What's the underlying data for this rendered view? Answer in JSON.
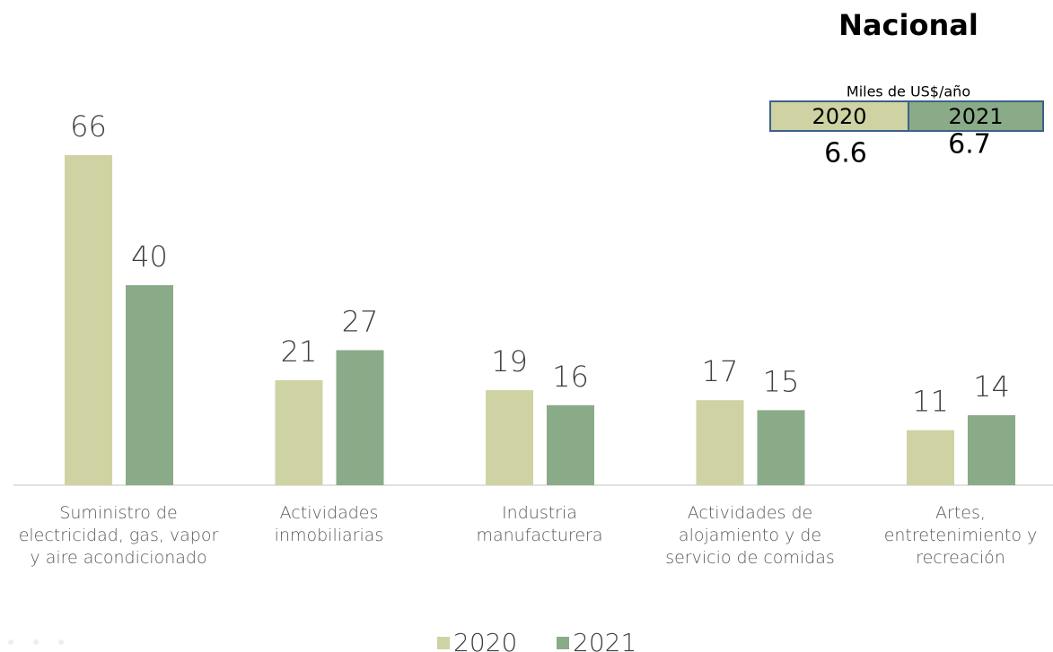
{
  "chart_data": {
    "type": "bar",
    "categories": [
      "Suministro de electricidad, gas, vapor y aire acondicionado",
      "Actividades inmobiliarias",
      "Industria manufacturera",
      "Actividades de alojamiento y de servicio de comidas",
      "Artes, entretenimiento y recreación"
    ],
    "series": [
      {
        "name": "2020",
        "color": "#cfd3a3",
        "values": [
          66,
          21,
          19,
          17,
          11
        ]
      },
      {
        "name": "2021",
        "color": "#8aab88",
        "values": [
          40,
          27,
          16,
          15,
          14
        ]
      }
    ],
    "legend": "bottom"
  },
  "summary": {
    "title": "Nacional",
    "unit": "Miles de US$/año",
    "headers": [
      "2020",
      "2021"
    ],
    "values": [
      6.6,
      6.7
    ]
  }
}
